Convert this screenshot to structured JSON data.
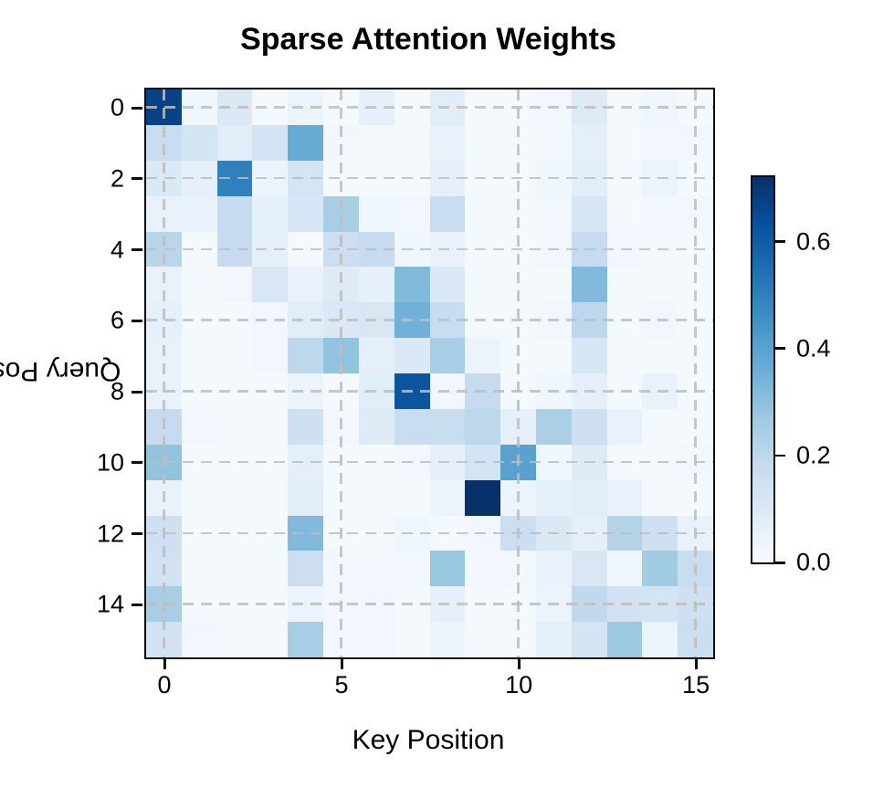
{
  "title": "Sparse Attention Weights",
  "chart_data": {
    "type": "heatmap",
    "title": "Sparse Attention Weights",
    "xlabel": "Key Position",
    "ylabel": "Query Position",
    "n_rows": 16,
    "n_cols": 16,
    "x_ticks": [
      0,
      5,
      10,
      15
    ],
    "x_tick_labels": [
      "0",
      "5",
      "10",
      "15"
    ],
    "y_ticks": [
      0,
      2,
      4,
      6,
      8,
      10,
      12,
      14
    ],
    "y_tick_labels": [
      "0",
      "2",
      "4",
      "6",
      "8",
      "10",
      "12",
      "14"
    ],
    "vmin": 0.0,
    "vmax": 0.72,
    "colormap": "Blues",
    "colormap_stops": [
      [
        0.0,
        "#f7fbff"
      ],
      [
        0.125,
        "#deebf7"
      ],
      [
        0.25,
        "#c6dbef"
      ],
      [
        0.375,
        "#9ecae1"
      ],
      [
        0.5,
        "#6baed6"
      ],
      [
        0.625,
        "#4292c6"
      ],
      [
        0.75,
        "#2171b5"
      ],
      [
        0.875,
        "#08519c"
      ],
      [
        1.0,
        "#08306b"
      ]
    ],
    "grid": {
      "on": true,
      "style": "dashed",
      "color": "#bebebe"
    },
    "legend_position": "none",
    "colorbar": {
      "ticks": [
        0.0,
        0.2,
        0.4,
        0.6
      ],
      "tick_labels": [
        "0.0",
        "0.2",
        "0.4",
        "0.6"
      ]
    },
    "values": [
      [
        0.67,
        0.03,
        0.1,
        0.01,
        0.04,
        0.01,
        0.06,
        0.01,
        0.08,
        0.01,
        0.01,
        0.02,
        0.09,
        0.01,
        0.03,
        0.01
      ],
      [
        0.17,
        0.13,
        0.08,
        0.13,
        0.37,
        0.02,
        0.01,
        0.01,
        0.05,
        0.01,
        0.01,
        0.02,
        0.07,
        0.01,
        0.02,
        0.02
      ],
      [
        0.1,
        0.06,
        0.5,
        0.04,
        0.13,
        0.01,
        0.01,
        0.01,
        0.06,
        0.01,
        0.01,
        0.03,
        0.08,
        0.01,
        0.04,
        0.01
      ],
      [
        0.05,
        0.05,
        0.18,
        0.06,
        0.12,
        0.25,
        0.03,
        0.02,
        0.17,
        0.01,
        0.01,
        0.02,
        0.12,
        0.01,
        0.02,
        0.02
      ],
      [
        0.21,
        0.01,
        0.18,
        0.06,
        0.01,
        0.16,
        0.18,
        0.03,
        0.05,
        0.01,
        0.01,
        0.02,
        0.18,
        0.02,
        0.01,
        0.01
      ],
      [
        0.05,
        0.01,
        0.02,
        0.11,
        0.05,
        0.09,
        0.06,
        0.32,
        0.1,
        0.01,
        0.01,
        0.01,
        0.32,
        0.01,
        0.01,
        0.01
      ],
      [
        0.06,
        0.01,
        0.01,
        0.02,
        0.08,
        0.1,
        0.11,
        0.35,
        0.17,
        0.01,
        0.01,
        0.02,
        0.2,
        0.01,
        0.02,
        0.01
      ],
      [
        0.05,
        0.01,
        0.01,
        0.02,
        0.2,
        0.29,
        0.07,
        0.1,
        0.25,
        0.04,
        0.01,
        0.01,
        0.12,
        0.01,
        0.01,
        0.01
      ],
      [
        0.05,
        0.01,
        0.01,
        0.01,
        0.04,
        0.01,
        0.08,
        0.62,
        0.02,
        0.18,
        0.01,
        0.03,
        0.06,
        0.01,
        0.05,
        0.01
      ],
      [
        0.18,
        0.02,
        0.01,
        0.01,
        0.15,
        0.02,
        0.09,
        0.17,
        0.17,
        0.2,
        0.06,
        0.24,
        0.15,
        0.05,
        0.01,
        0.01
      ],
      [
        0.29,
        0.01,
        0.01,
        0.01,
        0.07,
        0.01,
        0.01,
        0.02,
        0.06,
        0.13,
        0.4,
        0.03,
        0.09,
        0.01,
        0.01,
        0.02
      ],
      [
        0.05,
        0.01,
        0.01,
        0.01,
        0.08,
        0.01,
        0.01,
        0.01,
        0.04,
        0.72,
        0.04,
        0.06,
        0.08,
        0.05,
        0.01,
        0.01
      ],
      [
        0.15,
        0.01,
        0.01,
        0.01,
        0.32,
        0.01,
        0.01,
        0.03,
        0.01,
        0.02,
        0.16,
        0.1,
        0.07,
        0.22,
        0.15,
        0.05
      ],
      [
        0.14,
        0.01,
        0.01,
        0.01,
        0.16,
        0.02,
        0.02,
        0.02,
        0.28,
        0.02,
        0.02,
        0.05,
        0.11,
        0.03,
        0.26,
        0.17
      ],
      [
        0.25,
        0.01,
        0.01,
        0.01,
        0.04,
        0.02,
        0.02,
        0.01,
        0.06,
        0.01,
        0.01,
        0.04,
        0.19,
        0.14,
        0.13,
        0.15
      ],
      [
        0.14,
        0.02,
        0.01,
        0.01,
        0.25,
        0.02,
        0.02,
        0.01,
        0.04,
        0.01,
        0.01,
        0.06,
        0.13,
        0.27,
        0.04,
        0.16
      ]
    ]
  }
}
